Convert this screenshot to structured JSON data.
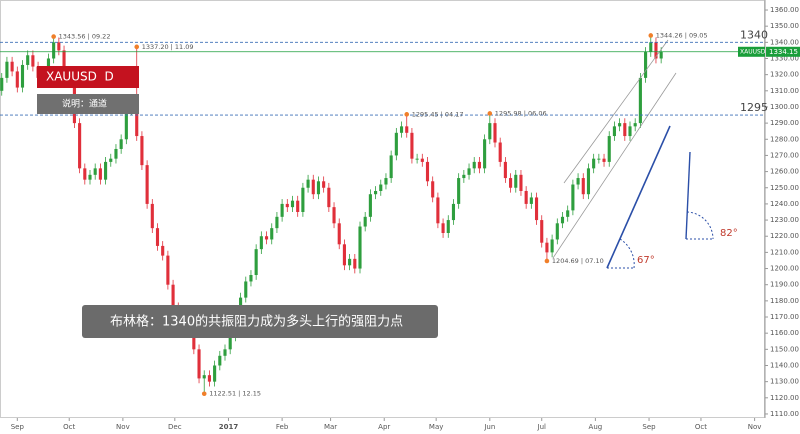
{
  "chart_data": {
    "type": "candlestick",
    "symbol_label": "XAUUSD  D",
    "subtitle": "说明：通道",
    "note": "布林格：1340的共振阻力成为多头上行的强阻力点",
    "up_color": "#2e9e3e",
    "down_color": "#e02f3a",
    "x": [
      -9,
      -6,
      -3,
      0,
      3,
      6,
      9,
      12,
      15,
      18,
      21,
      24,
      27,
      30,
      33,
      36,
      39,
      42,
      45,
      48,
      51,
      54,
      57,
      60,
      63,
      66,
      69,
      72,
      75,
      78,
      81,
      84,
      87,
      90,
      93,
      96,
      99,
      102,
      105,
      108,
      111,
      114,
      117,
      120,
      123,
      126,
      129,
      132,
      135,
      138,
      141,
      144,
      147,
      150,
      153,
      156,
      159,
      162,
      165,
      168,
      171,
      174,
      177,
      180,
      183,
      186,
      189,
      192,
      195,
      198,
      201,
      204,
      207,
      210,
      213,
      216,
      219,
      222,
      225,
      228,
      231,
      234,
      237,
      240,
      243,
      246,
      249,
      252,
      255,
      258,
      261,
      264,
      267,
      270,
      273,
      276,
      279,
      282,
      285,
      288,
      291,
      294,
      297,
      300,
      303,
      306,
      309,
      312,
      315,
      318,
      321,
      324,
      327,
      330,
      333,
      336,
      339,
      342,
      345,
      348,
      351,
      354,
      357,
      360,
      363,
      366,
      369,
      372
    ],
    "open": [
      1310,
      1318,
      1328,
      1322,
      1312,
      1326,
      1332,
      1325,
      1318,
      1322,
      1330,
      1340,
      1335,
      1322,
      1316,
      1290,
      1262,
      1255,
      1258,
      1262,
      1255,
      1266,
      1268,
      1274,
      1280,
      1298,
      1304,
      1282,
      1264,
      1240,
      1225,
      1214,
      1208,
      1190,
      1176,
      1168,
      1172,
      1166,
      1150,
      1132,
      1134,
      1130,
      1140,
      1146,
      1150,
      1158,
      1172,
      1182,
      1192,
      1196,
      1212,
      1220,
      1218,
      1225,
      1232,
      1240,
      1238,
      1242,
      1235,
      1250,
      1255,
      1246,
      1254,
      1250,
      1238,
      1228,
      1215,
      1202,
      1206,
      1200,
      1226,
      1232,
      1246,
      1248,
      1252,
      1256,
      1270,
      1284,
      1288,
      1284,
      1268,
      1268,
      1266,
      1254,
      1244,
      1228,
      1222,
      1230,
      1240,
      1256,
      1258,
      1262,
      1266,
      1262,
      1280,
      1290,
      1278,
      1266,
      1256,
      1250,
      1258,
      1248,
      1240,
      1244,
      1230,
      1216,
      1210,
      1218,
      1228,
      1232,
      1236,
      1252,
      1256,
      1246,
      1262,
      1268,
      1268,
      1266,
      1282,
      1288,
      1290,
      1282,
      1288,
      1290,
      1318,
      1334,
      1340,
      1330
    ],
    "high": [
      1321,
      1331,
      1331,
      1325,
      1329,
      1335,
      1335,
      1328,
      1325,
      1333,
      1343.56,
      1343,
      1338,
      1325,
      1319,
      1293,
      1265,
      1261,
      1265,
      1265,
      1269,
      1271,
      1277,
      1283,
      1301,
      1307,
      1337.2,
      1285,
      1267,
      1243,
      1228,
      1217,
      1211,
      1193,
      1179,
      1175,
      1175,
      1169,
      1153,
      1137,
      1137,
      1143,
      1149,
      1153,
      1161,
      1175,
      1185,
      1195,
      1199,
      1215,
      1223,
      1223,
      1228,
      1235,
      1243,
      1243,
      1245,
      1245,
      1253,
      1258,
      1258,
      1257,
      1257,
      1253,
      1241,
      1231,
      1218,
      1209,
      1209,
      1229,
      1235,
      1249,
      1251,
      1255,
      1259,
      1273,
      1287,
      1291,
      1295.45,
      1287,
      1271,
      1271,
      1269,
      1257,
      1247,
      1231,
      1233,
      1243,
      1259,
      1261,
      1265,
      1269,
      1269,
      1283,
      1295.98,
      1293,
      1281,
      1269,
      1259,
      1261,
      1261,
      1251,
      1247,
      1247,
      1233,
      1219,
      1221,
      1231,
      1235,
      1239,
      1255,
      1259,
      1259,
      1265,
      1271,
      1271,
      1271,
      1285,
      1291,
      1293,
      1293,
      1291,
      1293,
      1321,
      1337,
      1344.26,
      1343,
      1337
    ],
    "low": [
      1307,
      1315,
      1319,
      1309,
      1309,
      1323,
      1322,
      1315,
      1315,
      1319,
      1327,
      1332,
      1319,
      1313,
      1287,
      1259,
      1252,
      1252,
      1255,
      1252,
      1252,
      1263,
      1265,
      1271,
      1277,
      1295,
      1279,
      1261,
      1237,
      1222,
      1211,
      1205,
      1187,
      1173,
      1165,
      1165,
      1163,
      1147,
      1129,
      1122.51,
      1127,
      1127,
      1137,
      1143,
      1147,
      1155,
      1169,
      1179,
      1189,
      1193,
      1209,
      1215,
      1215,
      1222,
      1229,
      1235,
      1235,
      1232,
      1232,
      1247,
      1243,
      1243,
      1247,
      1235,
      1225,
      1212,
      1199,
      1199,
      1197,
      1197,
      1223,
      1229,
      1243,
      1245,
      1249,
      1253,
      1267,
      1281,
      1281,
      1265,
      1265,
      1263,
      1251,
      1241,
      1225,
      1219,
      1219,
      1227,
      1237,
      1253,
      1255,
      1259,
      1259,
      1259,
      1277,
      1275,
      1263,
      1253,
      1247,
      1247,
      1245,
      1237,
      1237,
      1227,
      1213,
      1204.69,
      1207,
      1215,
      1225,
      1229,
      1233,
      1249,
      1243,
      1243,
      1259,
      1265,
      1263,
      1263,
      1279,
      1285,
      1279,
      1279,
      1285,
      1287,
      1315,
      1331,
      1327,
      1327
    ],
    "close": [
      1318,
      1328,
      1322,
      1312,
      1326,
      1332,
      1325,
      1318,
      1322,
      1330,
      1340,
      1335,
      1322,
      1316,
      1290,
      1262,
      1255,
      1258,
      1262,
      1255,
      1266,
      1268,
      1274,
      1280,
      1298,
      1304,
      1282,
      1264,
      1240,
      1225,
      1214,
      1208,
      1190,
      1176,
      1168,
      1172,
      1166,
      1150,
      1132,
      1134,
      1130,
      1140,
      1146,
      1150,
      1158,
      1172,
      1182,
      1192,
      1196,
      1212,
      1220,
      1218,
      1225,
      1232,
      1240,
      1238,
      1242,
      1235,
      1250,
      1255,
      1246,
      1254,
      1250,
      1238,
      1228,
      1215,
      1202,
      1206,
      1200,
      1226,
      1232,
      1246,
      1248,
      1252,
      1256,
      1270,
      1284,
      1288,
      1284,
      1268,
      1268,
      1266,
      1254,
      1244,
      1228,
      1222,
      1230,
      1240,
      1256,
      1258,
      1262,
      1266,
      1262,
      1280,
      1290,
      1278,
      1266,
      1256,
      1250,
      1258,
      1248,
      1240,
      1244,
      1230,
      1216,
      1210,
      1218,
      1228,
      1232,
      1236,
      1252,
      1256,
      1246,
      1262,
      1268,
      1268,
      1266,
      1282,
      1288,
      1290,
      1282,
      1288,
      1290,
      1318,
      1334,
      1340,
      1330,
      1334
    ],
    "xlim": [
      -10,
      432
    ],
    "xticks": [
      {
        "value": 0,
        "label": "Sep"
      },
      {
        "value": 30,
        "label": "Oct"
      },
      {
        "value": 61,
        "label": "Nov"
      },
      {
        "value": 91,
        "label": "Dec"
      },
      {
        "value": 122,
        "label": "2017"
      },
      {
        "value": 153,
        "label": "Feb"
      },
      {
        "value": 181,
        "label": "Mar"
      },
      {
        "value": 212,
        "label": "Apr"
      },
      {
        "value": 242,
        "label": "May"
      },
      {
        "value": 273,
        "label": "Jun"
      },
      {
        "value": 303,
        "label": "Jul"
      },
      {
        "value": 334,
        "label": "Aug"
      },
      {
        "value": 365,
        "label": "Sep"
      },
      {
        "value": 395,
        "label": "Oct"
      },
      {
        "value": 426,
        "label": "Nov"
      }
    ],
    "ylim": [
      1107.5,
      1366.2
    ],
    "yticks": [
      {
        "value": 1110,
        "label": "1110.00"
      },
      {
        "value": 1120,
        "label": "1120.00"
      },
      {
        "value": 1130,
        "label": "1130.00"
      },
      {
        "value": 1140,
        "label": "1140.00"
      },
      {
        "value": 1150,
        "label": "1150.00"
      },
      {
        "value": 1160,
        "label": "1160.00"
      },
      {
        "value": 1170,
        "label": "1170.00"
      },
      {
        "value": 1180,
        "label": "1180.00"
      },
      {
        "value": 1190,
        "label": "1190.00"
      },
      {
        "value": 1200,
        "label": "1200.00"
      },
      {
        "value": 1210,
        "label": "1210.00"
      },
      {
        "value": 1220,
        "label": "1220.00"
      },
      {
        "value": 1230,
        "label": "1230.00"
      },
      {
        "value": 1240,
        "label": "1240.00"
      },
      {
        "value": 1250,
        "label": "1250.00"
      },
      {
        "value": 1260,
        "label": "1260.00"
      },
      {
        "value": 1270,
        "label": "1270.00"
      },
      {
        "value": 1280,
        "label": "1280.00"
      },
      {
        "value": 1290,
        "label": "1290.00"
      },
      {
        "value": 1300,
        "label": "1300.00"
      },
      {
        "value": 1310,
        "label": "1310.00"
      },
      {
        "value": 1320,
        "label": "1320.00"
      },
      {
        "value": 1330,
        "label": "1330.00"
      },
      {
        "value": 1340,
        "label": "1340.00"
      },
      {
        "value": 1350,
        "label": "1350.00"
      },
      {
        "value": 1360,
        "label": "1360.00"
      }
    ],
    "levels": [
      1340,
      1295
    ],
    "price_tag": {
      "name": "XAUUSD",
      "value": 1334.15,
      "color": "#1a9e3a"
    },
    "annotations": [
      "1343.56 | 09.22",
      "1337.20 | 11.09",
      "1122.51 | 12.15",
      "1295.45 | 04.17",
      "1295.98 | 06.06",
      "1204.69 | 07.10",
      "1344.26 | 09.05"
    ],
    "angles": [
      "67°",
      "82°"
    ]
  }
}
